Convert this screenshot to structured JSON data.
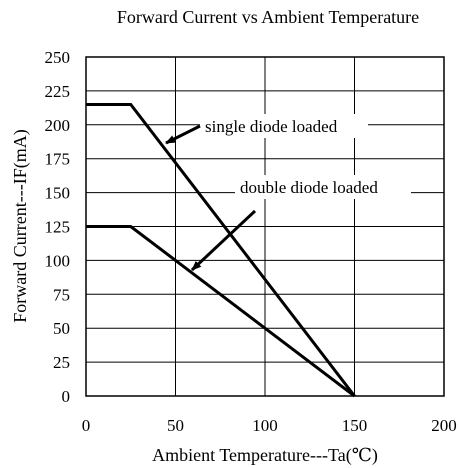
{
  "chart_data": {
    "type": "line",
    "title": "Forward Current vs Ambient Temperature",
    "xlabel": "Ambient Temperature---Ta(℃)",
    "ylabel": "Forward Current---IF(mA)",
    "xlim": [
      0,
      200
    ],
    "ylim": [
      0,
      250
    ],
    "xticks": [
      0,
      50,
      100,
      150,
      200
    ],
    "yticks": [
      0,
      25,
      50,
      75,
      100,
      125,
      150,
      175,
      200,
      225,
      250
    ],
    "grid": true,
    "series": [
      {
        "name": "single diode loaded",
        "x": [
          0,
          25,
          150
        ],
        "y": [
          215,
          215,
          0
        ]
      },
      {
        "name": "double diode loaded",
        "x": [
          0,
          25,
          150
        ],
        "y": [
          125,
          125,
          0
        ]
      }
    ]
  }
}
